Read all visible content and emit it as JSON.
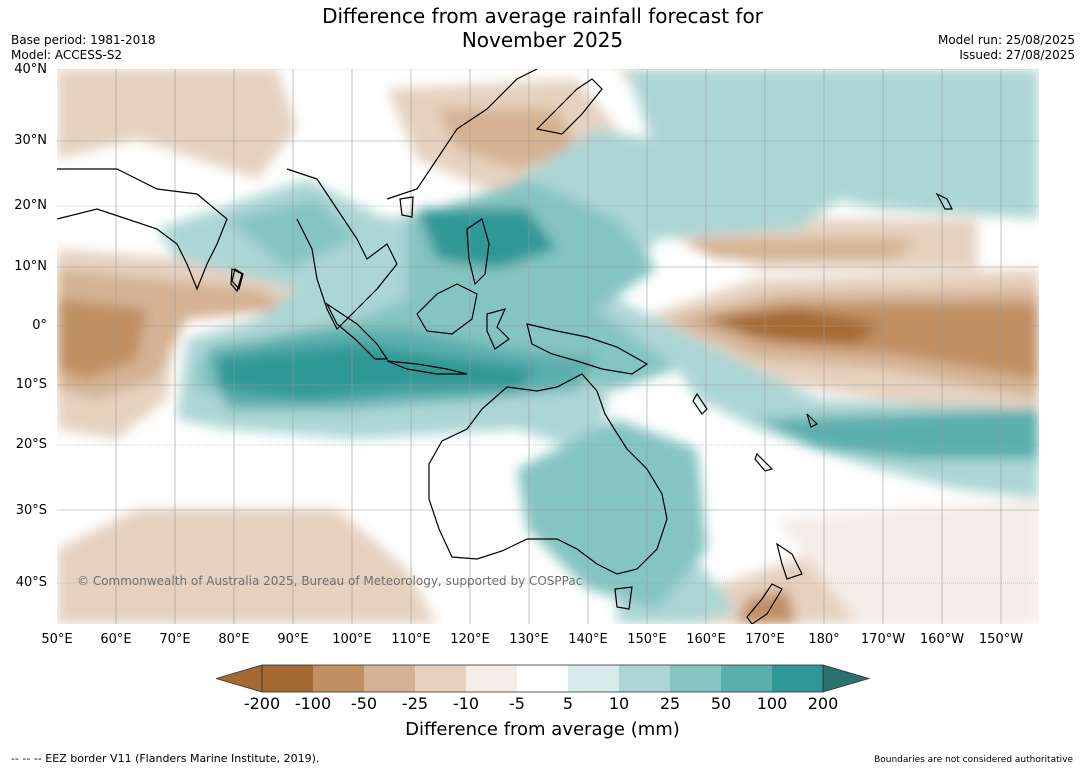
{
  "header": {
    "title_line1": "Difference from average rainfall forecast for",
    "title_line2": "November 2025",
    "base_period": "Base period: 1981-2018",
    "model": "Model: ACCESS-S2",
    "model_run": "Model run: 25/08/2025",
    "issued": "Issued: 27/08/2025"
  },
  "map": {
    "copyright": "© Commonwealth of Australia 2025, Bureau of Meteorology, supported by COSPPac",
    "lat_labels": [
      "40°N",
      "30°N",
      "20°N",
      "10°N",
      "0°",
      "10°S",
      "20°S",
      "30°S",
      "40°S"
    ],
    "lon_labels": [
      "50°E",
      "60°E",
      "70°E",
      "80°E",
      "90°E",
      "100°E",
      "110°E",
      "120°E",
      "130°E",
      "140°E",
      "150°E",
      "160°E",
      "170°E",
      "180°",
      "170°W",
      "160°W",
      "150°W"
    ]
  },
  "colorbar": {
    "title": "Difference from average (mm)",
    "labels": [
      "-200",
      "-100",
      "-50",
      "-25",
      "-10",
      "-5",
      "5",
      "10",
      "25",
      "50",
      "100",
      "200"
    ],
    "colors": [
      "#a46a33",
      "#c08f62",
      "#d4b293",
      "#e6d1bf",
      "#f4ece6",
      "#ffffff",
      "#d6ebea",
      "#acd6d5",
      "#84c4c2",
      "#5aafad",
      "#2e9896",
      "#2b716f"
    ]
  },
  "footer": {
    "eez": "--  --  -- EEZ border V11 (Flanders Marine Institute, 2019).",
    "disclaimer": "Boundaries are not considered authoritative"
  }
}
